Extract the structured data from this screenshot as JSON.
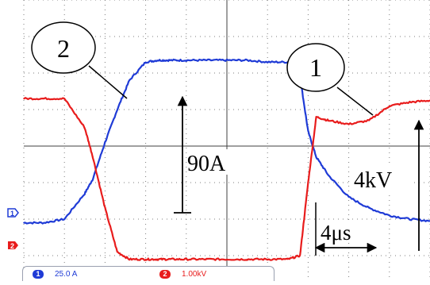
{
  "chart_data": {
    "type": "line",
    "title": "",
    "xlabel": "",
    "ylabel": "",
    "grid": true,
    "grid_style": "dotted, 10 x 8 divisions",
    "x": [
      0,
      0.5,
      1,
      1.5,
      1.7,
      2,
      2.3,
      2.6,
      3,
      3.3,
      3.6,
      4,
      4.5,
      5,
      5.5,
      6,
      6.5,
      6.8,
      7,
      7.2,
      7.5,
      8,
      8.5,
      9,
      9.5,
      10
    ],
    "x_unit": "divisions (4µs per 2.3 div as marked)",
    "y_unit": "divisions from screen center",
    "series": [
      {
        "name": "1",
        "channel": 1,
        "color": "#1f3bd6",
        "values": [
          -2.1,
          -2.1,
          -2.0,
          -1.3,
          -0.9,
          0.1,
          1.0,
          1.8,
          2.3,
          2.35,
          2.35,
          2.35,
          2.35,
          2.35,
          2.35,
          2.3,
          2.3,
          1.9,
          0.4,
          -0.3,
          -0.8,
          -1.4,
          -1.7,
          -1.9,
          -2.0,
          -2.05
        ]
      },
      {
        "name": "2",
        "channel": 2,
        "color": "#e81c1c",
        "values": [
          1.3,
          1.3,
          1.3,
          0.5,
          -0.3,
          -1.7,
          -2.9,
          -3.1,
          -3.1,
          -3.1,
          -3.1,
          -3.1,
          -3.1,
          -3.1,
          -3.1,
          -3.1,
          -3.1,
          -3.0,
          -1.0,
          0.8,
          0.7,
          0.6,
          0.7,
          1.1,
          1.2,
          1.25
        ]
      }
    ],
    "annotations": [
      {
        "label": "2",
        "kind": "callout-circle"
      },
      {
        "label": "1",
        "kind": "callout-circle"
      },
      {
        "label": "90A",
        "kind": "amplitude-arrow"
      },
      {
        "label": "4kV",
        "kind": "amplitude-arrow"
      },
      {
        "label": "4μs",
        "kind": "time-arrow"
      }
    ]
  },
  "channels": [
    {
      "number": "1",
      "scale": "25.0 A",
      "color": "#1f3bd6"
    },
    {
      "number": "2",
      "scale": "1.00kV",
      "color": "#e81c1c"
    }
  ],
  "markers": {
    "ch1": "1",
    "ch2": "2"
  }
}
